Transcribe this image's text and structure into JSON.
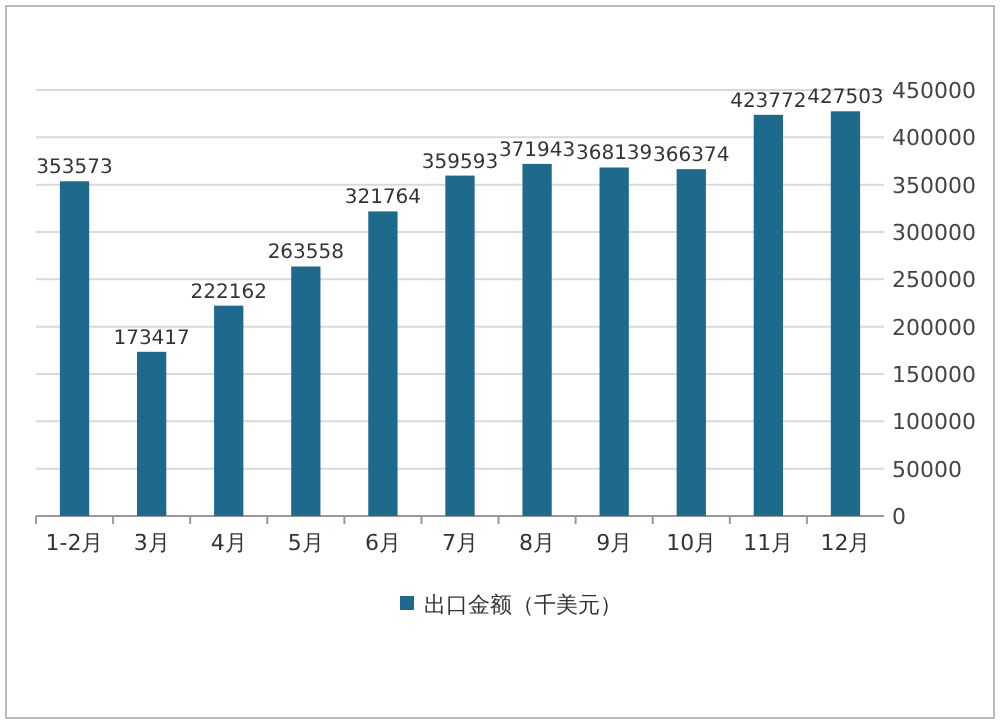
{
  "chart_data": {
    "type": "bar",
    "categories": [
      "1-2月",
      "3月",
      "4月",
      "5月",
      "6月",
      "7月",
      "8月",
      "9月",
      "10月",
      "11月",
      "12月"
    ],
    "series": [
      {
        "name": "出口金额（千美元）",
        "color": "#1d6a8c",
        "values": [
          353573,
          173417,
          222162,
          263558,
          321764,
          359593,
          371943,
          368139,
          366374,
          423772,
          427503
        ]
      }
    ],
    "ylim": [
      0,
      450000
    ],
    "yticks": [
      0,
      50000,
      100000,
      150000,
      200000,
      250000,
      300000,
      350000,
      400000,
      450000
    ],
    "grid": "y",
    "legend": "bottom",
    "data_labels": true
  }
}
